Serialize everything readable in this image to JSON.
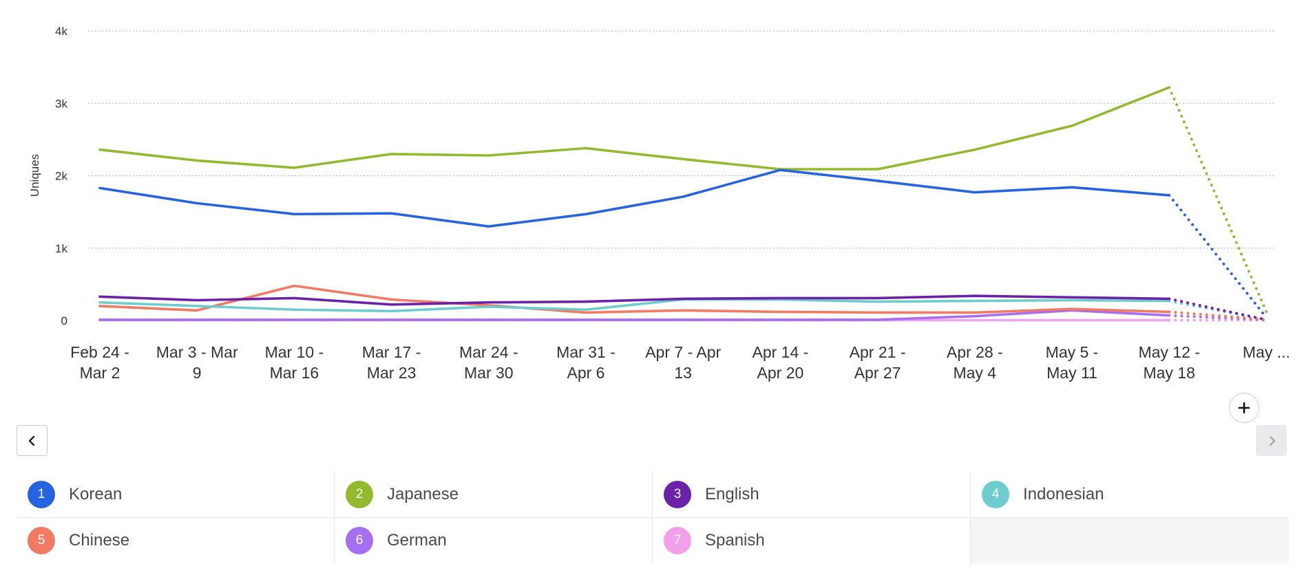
{
  "chart_data": {
    "type": "line",
    "ylabel": "Uniques",
    "ylim": [
      0,
      4000
    ],
    "yticks": [
      {
        "value": 0,
        "label": "0"
      },
      {
        "value": 1000,
        "label": "1k"
      },
      {
        "value": 2000,
        "label": "2k"
      },
      {
        "value": 3000,
        "label": "3k"
      },
      {
        "value": 4000,
        "label": "4k"
      }
    ],
    "grid": true,
    "categories": [
      [
        "Feb 24 -",
        "Mar 2"
      ],
      [
        "Mar 3 - Mar",
        "9"
      ],
      [
        "Mar 10 -",
        "Mar 16"
      ],
      [
        "Mar 17 -",
        "Mar 23"
      ],
      [
        "Mar 24 -",
        "Mar 30"
      ],
      [
        "Mar 31 -",
        "Apr 6"
      ],
      [
        "Apr 7 - Apr",
        "13"
      ],
      [
        "Apr 14 -",
        "Apr 20"
      ],
      [
        "Apr 21 -",
        "Apr 27"
      ],
      [
        "Apr 28 -",
        "May 4"
      ],
      [
        "May 5 -",
        "May 11"
      ],
      [
        "May 12 -",
        "May 18"
      ],
      [
        "May ...",
        ""
      ]
    ],
    "incomplete_last_period": true,
    "series": [
      {
        "name": "Korean",
        "color": "#2563e0",
        "values": [
          1830,
          1620,
          1470,
          1480,
          1300,
          1470,
          1710,
          2080,
          1930,
          1770,
          1840,
          1730,
          40
        ]
      },
      {
        "name": "Japanese",
        "color": "#93b92e",
        "values": [
          2360,
          2210,
          2110,
          2300,
          2280,
          2380,
          2230,
          2090,
          2090,
          2360,
          2690,
          3220,
          120
        ]
      },
      {
        "name": "English",
        "color": "#6b22a8",
        "values": [
          330,
          280,
          310,
          220,
          250,
          260,
          300,
          310,
          310,
          340,
          320,
          300,
          10
        ]
      },
      {
        "name": "Indonesian",
        "color": "#6dcccd",
        "values": [
          250,
          200,
          150,
          130,
          190,
          150,
          290,
          290,
          260,
          270,
          280,
          270,
          10
        ]
      },
      {
        "name": "Chinese",
        "color": "#f07a62",
        "values": [
          200,
          140,
          480,
          290,
          210,
          110,
          140,
          120,
          110,
          110,
          160,
          120,
          15
        ]
      },
      {
        "name": "German",
        "color": "#a66ef0",
        "values": [
          10,
          10,
          10,
          10,
          10,
          10,
          10,
          10,
          10,
          60,
          140,
          70,
          8
        ]
      },
      {
        "name": "Spanish",
        "color": "#f3a0ea",
        "values": [
          5,
          5,
          5,
          5,
          5,
          5,
          5,
          5,
          5,
          5,
          5,
          5,
          5
        ]
      }
    ]
  },
  "controls": {
    "prev_icon": "chevron-left-icon",
    "next_icon": "chevron-right-icon",
    "add_icon": "plus-icon"
  },
  "legend": [
    {
      "index": "1",
      "label": "Korean",
      "color": "#2563e0"
    },
    {
      "index": "2",
      "label": "Japanese",
      "color": "#93b92e"
    },
    {
      "index": "3",
      "label": "English",
      "color": "#6b22a8"
    },
    {
      "index": "4",
      "label": "Indonesian",
      "color": "#6dcccd"
    },
    {
      "index": "5",
      "label": "Chinese",
      "color": "#f07a62"
    },
    {
      "index": "6",
      "label": "German",
      "color": "#a66ef0"
    },
    {
      "index": "7",
      "label": "Spanish",
      "color": "#f3a0ea"
    }
  ]
}
